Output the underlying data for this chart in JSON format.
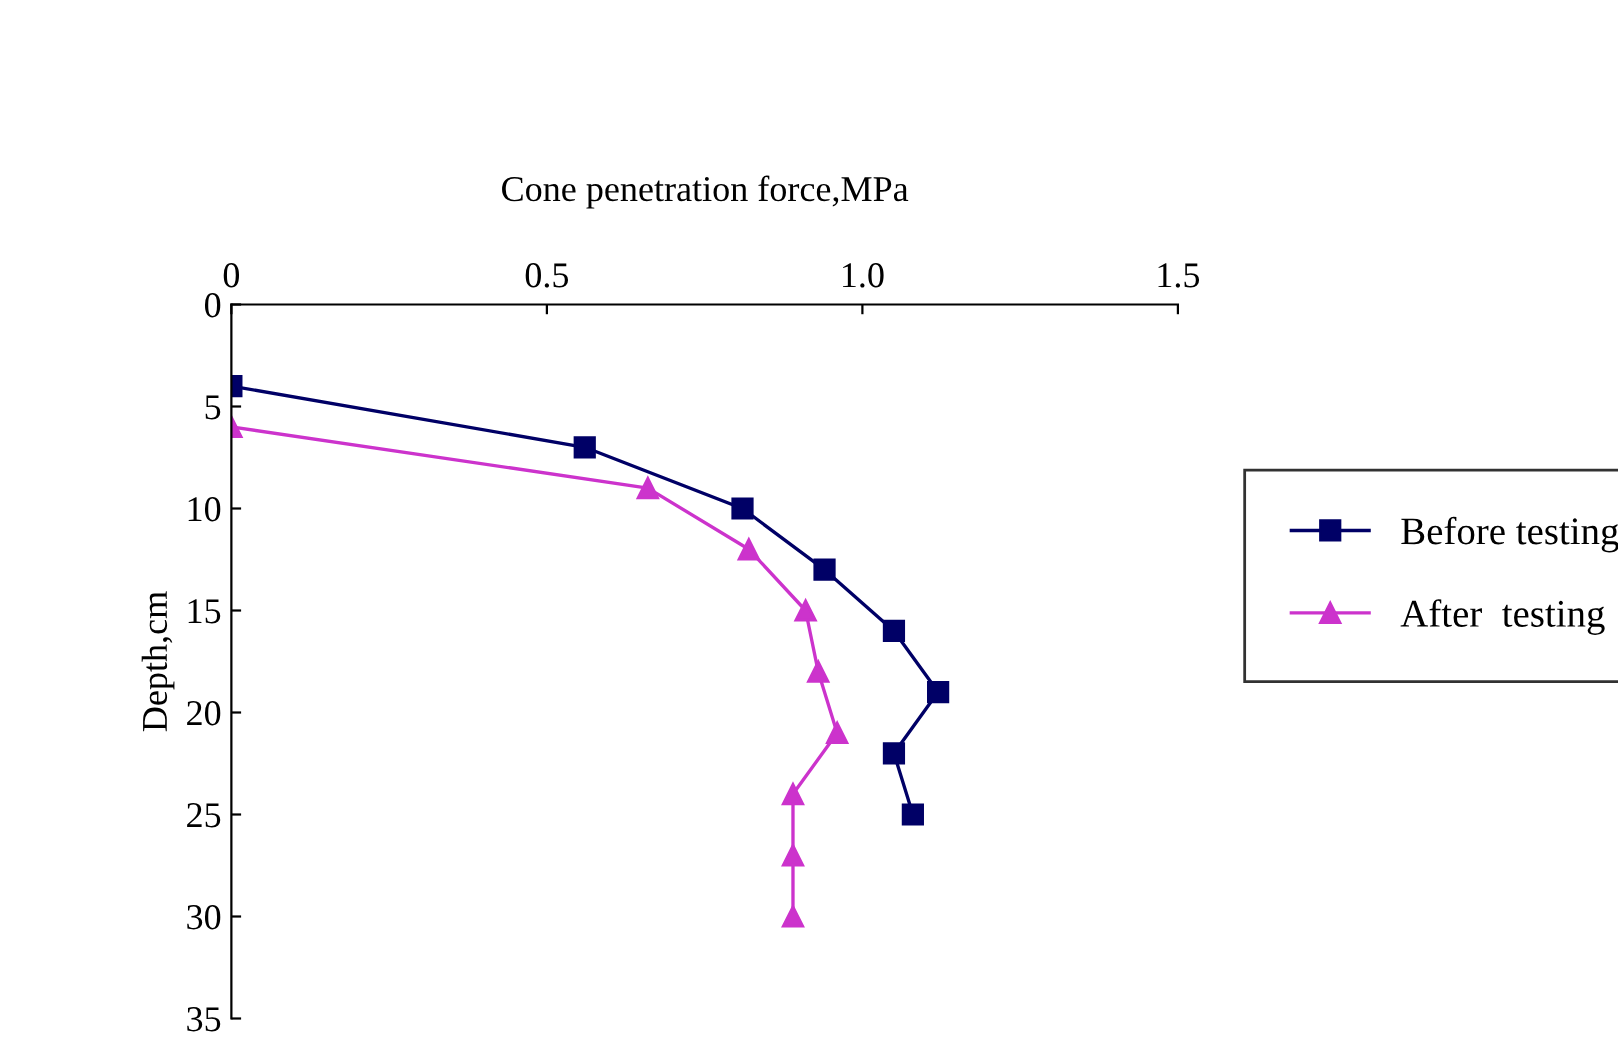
{
  "chart_data": {
    "type": "line",
    "xlabel": "Cone penetration force,MPa",
    "ylabel": "Depth,cm",
    "xlim": [
      0,
      1.5
    ],
    "xticks": [
      0,
      0.5,
      {
        "value": 1.0,
        "label": "1.0"
      },
      1.5
    ],
    "ylim": [
      35,
      0
    ],
    "yticks": [
      0,
      5,
      10,
      15,
      20,
      25,
      30,
      35
    ],
    "grid": false,
    "legend": "right",
    "series": [
      {
        "name": "Before testing",
        "color": "#000066",
        "marker": "square",
        "x": [
          0,
          0.56,
          0.81,
          0.94,
          1.05,
          1.12,
          1.05,
          1.08
        ],
        "values": [
          4,
          7,
          10,
          13,
          16,
          19,
          22,
          25
        ]
      },
      {
        "name": "After  testing",
        "color": "#cc33cc",
        "marker": "triangle",
        "x": [
          0,
          0.66,
          0.82,
          0.91,
          0.93,
          0.96,
          0.89,
          0.89,
          0.89
        ],
        "values": [
          6,
          9,
          12,
          15,
          18,
          21,
          24,
          27,
          30
        ]
      }
    ]
  }
}
